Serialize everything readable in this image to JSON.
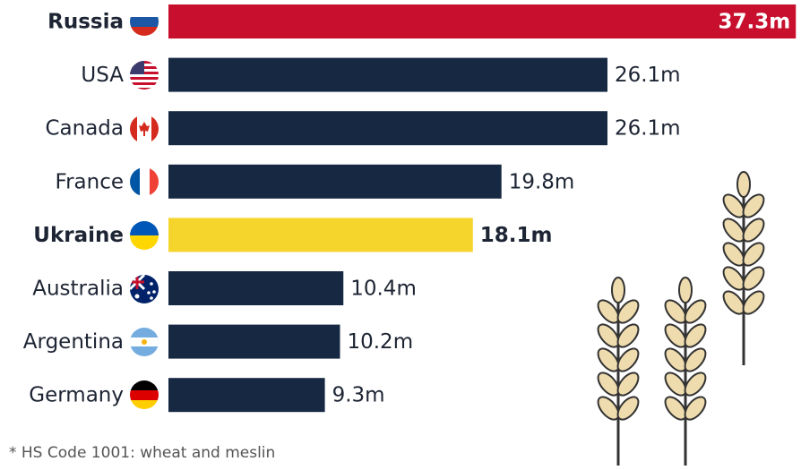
{
  "chart_data": {
    "type": "bar",
    "orientation": "horizontal",
    "categories": [
      "Russia",
      "USA",
      "Canada",
      "France",
      "Ukraine",
      "Australia",
      "Argentina",
      "Germany"
    ],
    "values": [
      37.3,
      26.1,
      26.1,
      19.8,
      18.1,
      10.4,
      10.2,
      9.3
    ],
    "value_labels": [
      "37.3m",
      "26.1m",
      "26.1m",
      "19.8m",
      "18.1m",
      "10.4m",
      "10.2m",
      "9.3m"
    ],
    "colors": [
      "#c8102e",
      "#172842",
      "#172842",
      "#172842",
      "#f5d42c",
      "#172842",
      "#172842",
      "#172842"
    ],
    "bold": [
      true,
      false,
      false,
      false,
      true,
      false,
      false,
      false
    ],
    "xlim": [
      0,
      37.5
    ],
    "footnote": "* HS Code 1001: wheat and meslin"
  }
}
